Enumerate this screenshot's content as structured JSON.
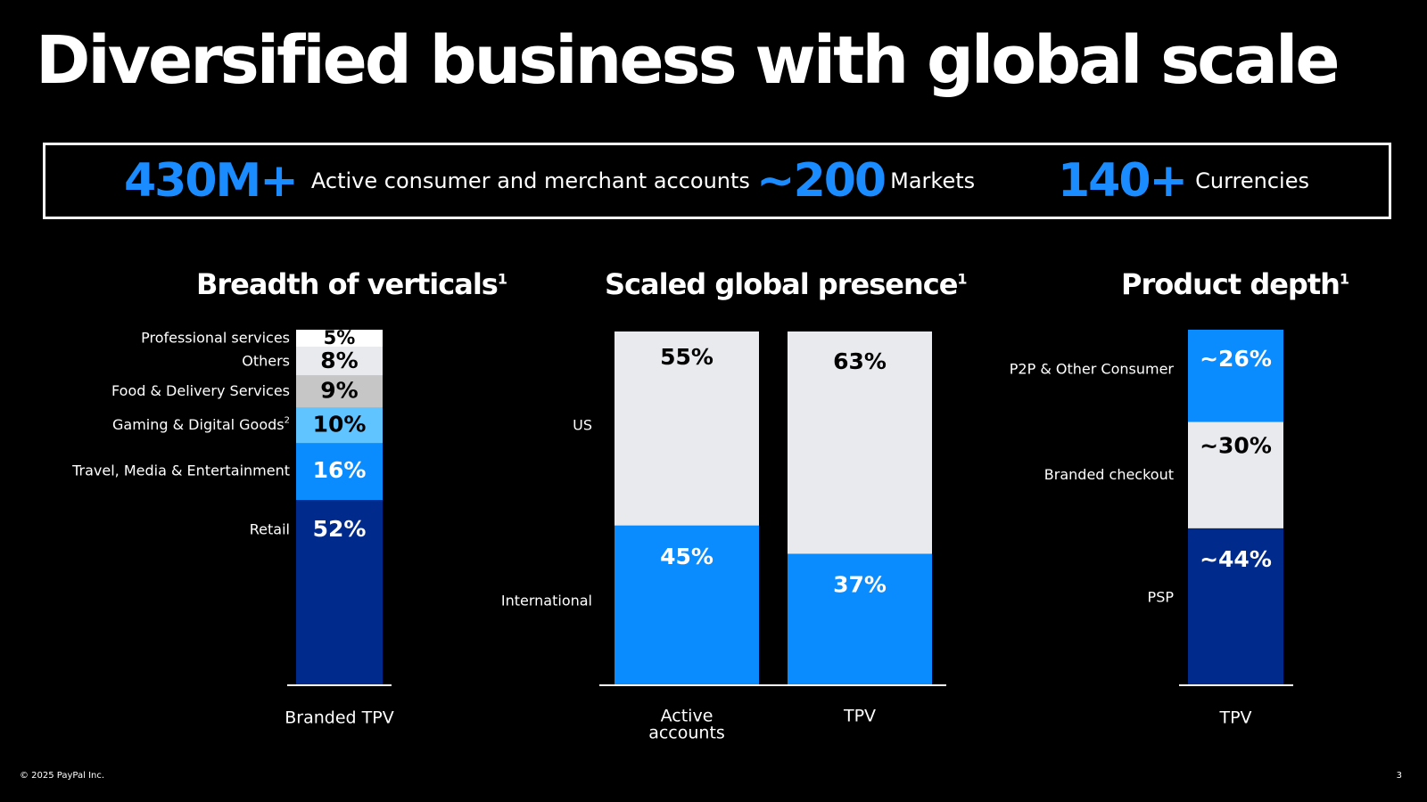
{
  "title": "Diversified business with global scale",
  "kpis": [
    {
      "value": "430M+",
      "label": "Active consumer and merchant accounts"
    },
    {
      "value": "~200",
      "label": "Markets"
    },
    {
      "value": "140+",
      "label": "Currencies"
    }
  ],
  "colors": {
    "accent": "#1a8cff",
    "navy": "#002a8c",
    "blue": "#0a8cff",
    "light_blue": "#5fc4ff",
    "light_gray": "#e8eaed",
    "mid_gray": "#c6c6c6"
  },
  "chart_data": [
    {
      "type": "bar",
      "stacked": true,
      "title": "Breadth of verticals",
      "title_footnote": "1",
      "categories": [
        "Branded TPV"
      ],
      "series": [
        {
          "name": "Retail",
          "values": [
            52
          ],
          "label": "52%",
          "color": "#002a8c",
          "text_color": "#ffffff"
        },
        {
          "name": "Travel, Media & Entertainment",
          "values": [
            16
          ],
          "label": "16%",
          "color": "#0a8cff",
          "text_color": "#ffffff"
        },
        {
          "name": "Gaming & Digital Goods",
          "name_footnote": "2",
          "values": [
            10
          ],
          "label": "10%",
          "color": "#5fc4ff",
          "text_color": "#000000"
        },
        {
          "name": "Food & Delivery Services",
          "values": [
            9
          ],
          "label": "9%",
          "color": "#c6c6c6",
          "text_color": "#000000"
        },
        {
          "name": "Others",
          "values": [
            8
          ],
          "label": "8%",
          "color": "#e8eaed",
          "text_color": "#000000"
        },
        {
          "name": "Professional services",
          "values": [
            5
          ],
          "label": "5%",
          "color": "#ffffff",
          "text_color": "#000000"
        }
      ]
    },
    {
      "type": "bar",
      "stacked": true,
      "title": "Scaled global presence",
      "title_footnote": "1",
      "categories": [
        "Active accounts",
        "TPV"
      ],
      "series": [
        {
          "name": "International",
          "values": [
            45,
            37
          ],
          "labels": [
            "45%",
            "37%"
          ],
          "color": "#0a8cff",
          "text_color": "#ffffff"
        },
        {
          "name": "US",
          "values": [
            55,
            63
          ],
          "labels": [
            "55%",
            "63%"
          ],
          "color": "#e8eaed",
          "text_color": "#000000"
        }
      ]
    },
    {
      "type": "bar",
      "stacked": true,
      "title": "Product depth",
      "title_footnote": "1",
      "categories": [
        "TPV"
      ],
      "series": [
        {
          "name": "PSP",
          "values": [
            44
          ],
          "label": "~44%",
          "color": "#002a8c",
          "text_color": "#ffffff"
        },
        {
          "name": "Branded checkout",
          "values": [
            30
          ],
          "label": "~30%",
          "color": "#e8eaed",
          "text_color": "#000000"
        },
        {
          "name": "P2P & Other Consumer",
          "values": [
            26
          ],
          "label": "~26%",
          "color": "#0a8cff",
          "text_color": "#ffffff"
        }
      ]
    }
  ],
  "footer": "© 2025 PayPal Inc.",
  "page_number": "3"
}
